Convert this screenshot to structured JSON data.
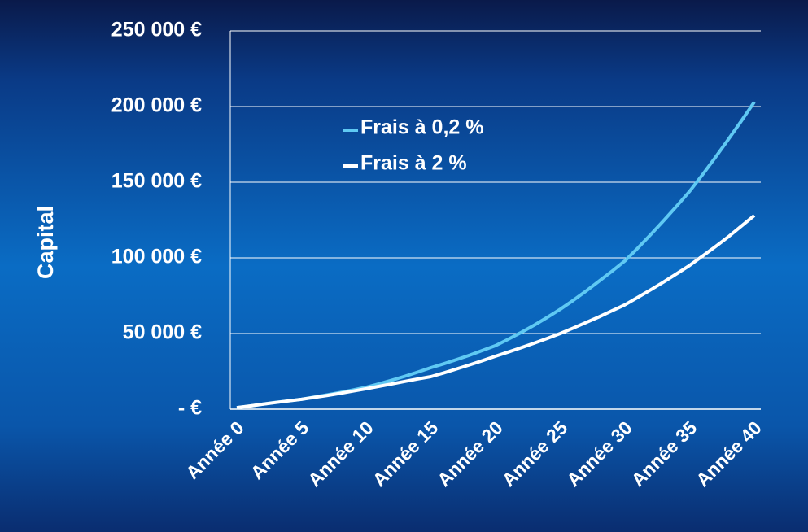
{
  "chart_data": {
    "type": "line",
    "y_label": "Capital",
    "categories": [
      "Année 0",
      null,
      null,
      null,
      null,
      "Année 5",
      null,
      null,
      null,
      null,
      "Année 10",
      null,
      null,
      null,
      null,
      "Année 15",
      null,
      null,
      null,
      null,
      "Année 20",
      null,
      null,
      null,
      null,
      "Année 25",
      null,
      null,
      null,
      null,
      "Année 30",
      null,
      null,
      null,
      null,
      "Année 35",
      null,
      null,
      null,
      null,
      "Année 40"
    ],
    "series": [
      {
        "name": "Frais à 0,2 %",
        "color": "#5fc9f3",
        "values": [
          1000,
          2100,
          3300,
          4500,
          5500,
          6500,
          8000,
          9500,
          11000,
          12700,
          14500,
          16800,
          19200,
          21800,
          24500,
          27400,
          30000,
          32800,
          35700,
          38800,
          42000,
          46300,
          50800,
          55600,
          60700,
          66000,
          71900,
          78100,
          84600,
          91200,
          98000,
          106500,
          115500,
          124700,
          134200,
          144000,
          155000,
          166500,
          178400,
          190500,
          203000
        ]
      },
      {
        "name": "Frais à 2 %",
        "color": "#ffffff",
        "values": [
          1000,
          2100,
          3300,
          4400,
          5500,
          6500,
          7800,
          9100,
          10500,
          12000,
          13500,
          15100,
          16700,
          18400,
          20000,
          21500,
          24000,
          26600,
          29300,
          32100,
          35000,
          37800,
          40700,
          43700,
          46800,
          50000,
          53600,
          57300,
          61000,
          65000,
          69000,
          73900,
          78900,
          84100,
          89500,
          95000,
          101200,
          107500,
          114000,
          121000,
          128000
        ]
      }
    ],
    "ylim": [
      0,
      250000
    ],
    "yticks": [
      {
        "value": 0,
        "label": "-   €"
      },
      {
        "value": 50000,
        "label": "50 000 €"
      },
      {
        "value": 100000,
        "label": "100 000 €"
      },
      {
        "value": 150000,
        "label": "150 000 €"
      },
      {
        "value": 200000,
        "label": "200 000 €"
      },
      {
        "value": 250000,
        "label": "250 000 €"
      }
    ],
    "grid": true
  }
}
